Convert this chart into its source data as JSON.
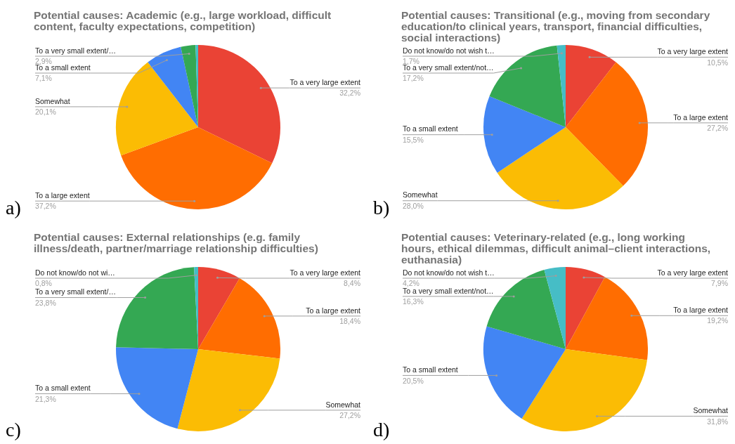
{
  "chart_data": [
    {
      "type": "pie",
      "title": "Potential causes: Academic (e.g., large workload, difficult content, faculty expectations, competition)",
      "categories": [
        "To a very large extent",
        "To a large extent",
        "Somewhat",
        "To a small extent",
        "To a very small extent/…",
        null
      ],
      "values": [
        32.2,
        37.2,
        20.1,
        7.1,
        2.9,
        0.5
      ],
      "colors": [
        "#ea4335",
        "#ff6d01",
        "#fbbc04",
        "#4285f4",
        "#34a853",
        "#46bdc6"
      ],
      "value_labels": [
        "32,2%",
        "37,2%",
        "20,1%",
        "7,1%",
        "2,9%",
        null
      ],
      "annotations": [
        "a)"
      ]
    },
    {
      "type": "pie",
      "title": "Potential causes: Transitional (e.g., moving from secondary education/to clinical years, transport, financial difficulties, social interactions)",
      "categories": [
        "To a very large extent",
        "To a large extent",
        "Somewhat",
        "To a small extent",
        "To a very small extent/not…",
        "Do not know/do not wish t…"
      ],
      "values": [
        10.5,
        27.2,
        28.0,
        15.5,
        17.2,
        1.7
      ],
      "colors": [
        "#ea4335",
        "#ff6d01",
        "#fbbc04",
        "#4285f4",
        "#34a853",
        "#46bdc6"
      ],
      "value_labels": [
        "10,5%",
        "27,2%",
        "28,0%",
        "15,5%",
        "17,2%",
        "1,7%"
      ],
      "annotations": [
        "b)"
      ]
    },
    {
      "type": "pie",
      "title": "Potential causes: External relationships (e.g. family illness/death, partner/marriage relationship difficulties)",
      "categories": [
        "To a very large extent",
        "To a large extent",
        "Somewhat",
        "To a small extent",
        "To a very small extent/…",
        "Do not know/do not wi…"
      ],
      "values": [
        8.4,
        18.4,
        27.2,
        21.3,
        23.8,
        0.8
      ],
      "colors": [
        "#ea4335",
        "#ff6d01",
        "#fbbc04",
        "#4285f4",
        "#34a853",
        "#46bdc6"
      ],
      "value_labels": [
        "8,4%",
        "18,4%",
        "27,2%",
        "21,3%",
        "23,8%",
        "0,8%"
      ],
      "annotations": [
        "c)"
      ]
    },
    {
      "type": "pie",
      "title": "Potential causes: Veterinary-related (e.g., long working hours, ethical dilemmas, difficult animal–client interactions, euthanasia)",
      "categories": [
        "To a very large extent",
        "To a large extent",
        "Somewhat",
        "To a small extent",
        "To a very small extent/not…",
        "Do not know/do not wish t…"
      ],
      "values": [
        7.9,
        19.2,
        31.8,
        20.5,
        16.3,
        4.2
      ],
      "colors": [
        "#ea4335",
        "#ff6d01",
        "#fbbc04",
        "#4285f4",
        "#34a853",
        "#46bdc6"
      ],
      "value_labels": [
        "7,9%",
        "19,2%",
        "31,8%",
        "20,5%",
        "16,3%",
        "4,2%"
      ],
      "annotations": [
        "d)"
      ]
    }
  ]
}
